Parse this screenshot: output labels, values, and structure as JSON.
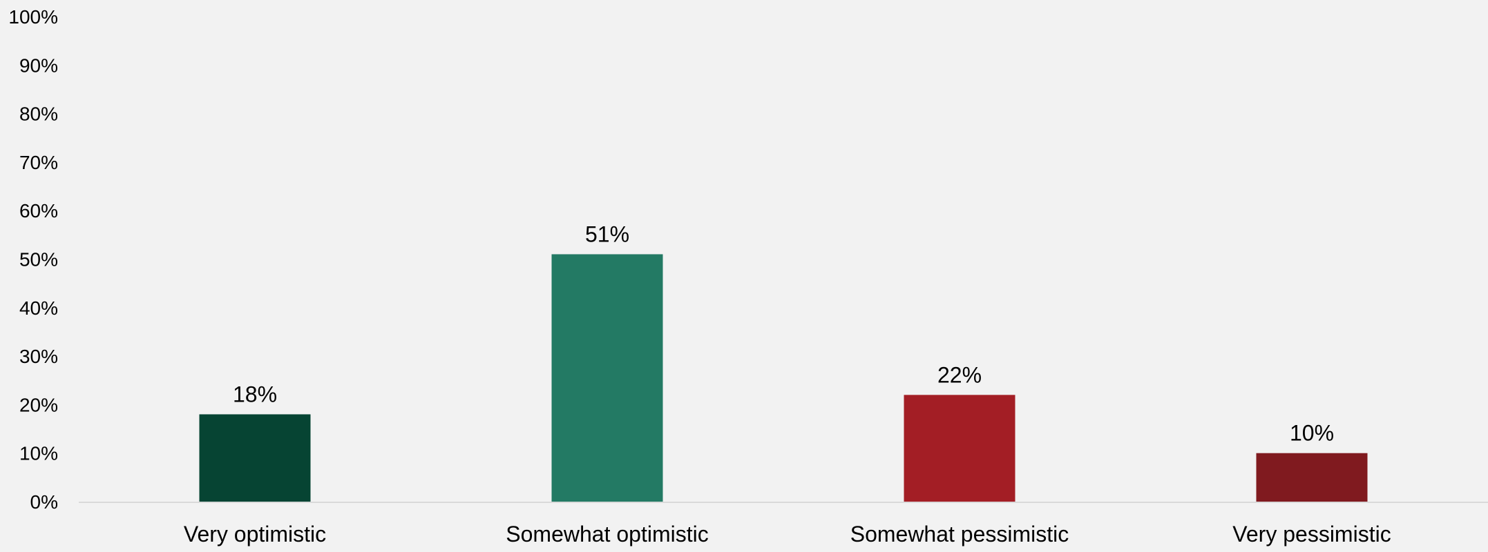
{
  "chart_data": {
    "type": "bar",
    "categories": [
      "Very optimistic",
      "Somewhat optimistic",
      "Somewhat pessimistic",
      "Very pessimistic"
    ],
    "values": [
      18,
      51,
      22,
      10
    ],
    "data_labels": [
      "18%",
      "51%",
      "22%",
      "10%"
    ],
    "colors": [
      "#064433",
      "#237a64",
      "#a31e25",
      "#801a1f"
    ],
    "ylim": [
      0,
      100
    ],
    "yticks": [
      0,
      10,
      20,
      30,
      40,
      50,
      60,
      70,
      80,
      90,
      100
    ],
    "ytick_labels": [
      "0%",
      "10%",
      "20%",
      "30%",
      "40%",
      "50%",
      "60%",
      "70%",
      "80%",
      "90%",
      "100%"
    ],
    "title": "",
    "xlabel": "",
    "ylabel": "",
    "grid": false,
    "legend": "none"
  },
  "colors": {
    "background": "#f2f2f2",
    "axis_line": "#d9d9d9",
    "text": "#000000"
  }
}
